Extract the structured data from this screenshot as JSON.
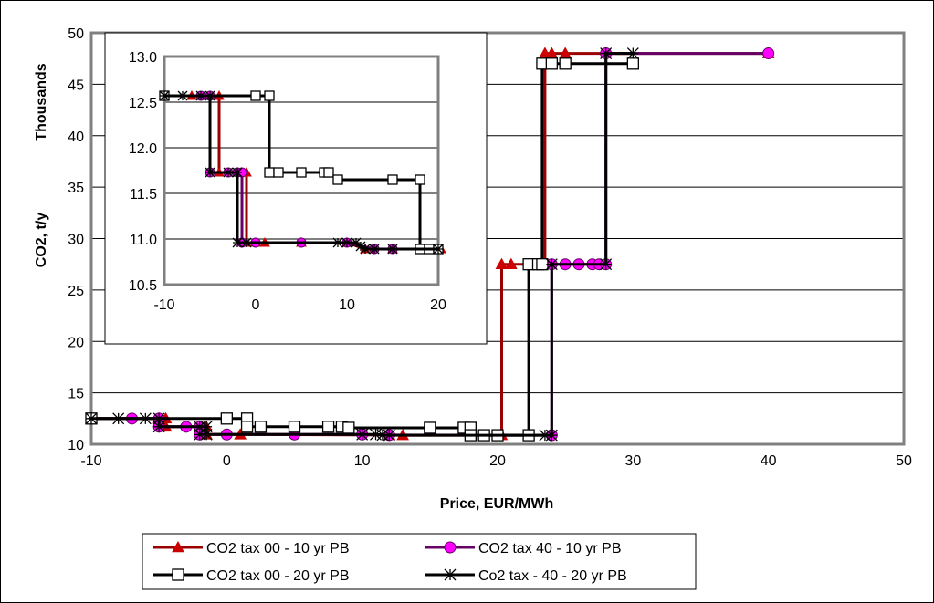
{
  "chart_data": [
    {
      "type": "line",
      "title": "",
      "xlabel": "Price, EUR/MWh",
      "ylabel": "CO2, t/y",
      "y_unit_label": "Thousands",
      "xlim": [
        -10,
        50
      ],
      "ylim": [
        10,
        50
      ],
      "x_ticks": [
        "-10",
        "0",
        "10",
        "20",
        "30",
        "40",
        "50"
      ],
      "y_ticks": [
        "10",
        "15",
        "20",
        "25",
        "30",
        "35",
        "40",
        "45",
        "50"
      ],
      "grid": "horizontal",
      "legend_position": "bottom",
      "series": [
        {
          "name": "CO2 tax 00 - 10 yr PB",
          "color": "#990000",
          "marker": "triangle",
          "marker_color": "#cc0000",
          "x": [
            -10,
            -5,
            -4.5,
            -4.5,
            -2,
            -1.5,
            -1.5,
            1,
            12,
            13,
            20.3,
            20.3,
            21,
            23.5,
            23.5,
            24,
            25,
            40
          ],
          "y": [
            12.5,
            12.5,
            12.5,
            11.7,
            11.7,
            11.7,
            10.95,
            10.95,
            10.9,
            10.88,
            10.88,
            27.5,
            27.5,
            27.5,
            48,
            48,
            48,
            48
          ]
        },
        {
          "name": "CO2 tax 40 - 10 yr PB",
          "color": "#660066",
          "marker": "circle",
          "marker_color": "#ff00ff",
          "x": [
            -10,
            -7,
            -5,
            -5,
            -3,
            -2,
            -2,
            0,
            5,
            10,
            12,
            24,
            24,
            25,
            26,
            27,
            27.5,
            28,
            28,
            40
          ],
          "y": [
            12.5,
            12.5,
            12.5,
            11.7,
            11.7,
            11.7,
            10.95,
            10.95,
            10.95,
            10.95,
            10.9,
            10.88,
            27.5,
            27.5,
            27.5,
            27.5,
            27.5,
            27.5,
            48,
            48
          ]
        },
        {
          "name": "CO2 tax 00 - 20 yr PB",
          "color": "#000000",
          "marker": "square",
          "marker_color": "#ffffff",
          "x": [
            -10,
            0,
            1.5,
            1.5,
            2.5,
            5,
            7.5,
            8.5,
            9,
            15,
            17.5,
            18,
            18,
            19,
            20,
            22.3,
            22.3,
            23,
            23.3,
            23.3,
            24,
            25,
            30
          ],
          "y": [
            12.5,
            12.5,
            12.5,
            11.7,
            11.7,
            11.7,
            11.7,
            11.7,
            11.6,
            11.6,
            11.6,
            11.6,
            10.88,
            10.88,
            10.88,
            10.88,
            27.5,
            27.5,
            27.5,
            47,
            47,
            47,
            47
          ]
        },
        {
          "name": "Co2 tax - 40 - 20 yr PB",
          "color": "#000000",
          "marker": "star",
          "marker_color": "#000000",
          "x": [
            -10,
            -8,
            -6,
            -5,
            -5,
            -2,
            -1.5,
            -1.5,
            -2,
            10,
            11,
            11.5,
            12,
            23.5,
            24,
            24,
            28,
            28,
            30
          ],
          "y": [
            12.5,
            12.5,
            12.5,
            12.5,
            11.7,
            11.7,
            11.7,
            10.95,
            10.95,
            10.95,
            10.95,
            10.9,
            10.88,
            10.88,
            10.88,
            27.5,
            27.5,
            48,
            48
          ]
        }
      ]
    },
    {
      "type": "line",
      "title": "",
      "xlim": [
        -10,
        20
      ],
      "ylim": [
        10.5,
        13.0
      ],
      "x_ticks": [
        "-10",
        "0",
        "10",
        "20"
      ],
      "y_ticks": [
        "10.5",
        "11.0",
        "11.5",
        "12.0",
        "12.5",
        "13.0"
      ],
      "grid": "horizontal",
      "series": [
        {
          "name": "CO2 tax 00 - 10 yr PB",
          "color": "#990000",
          "marker": "triangle",
          "marker_color": "#cc0000",
          "x": [
            -10,
            -7,
            -5,
            -4,
            -4,
            -2,
            -1,
            -1,
            0,
            1,
            5,
            10,
            12,
            15,
            20.3
          ],
          "y": [
            12.57,
            12.57,
            12.57,
            12.57,
            11.73,
            11.73,
            11.73,
            10.96,
            10.96,
            10.96,
            10.96,
            10.96,
            10.89,
            10.89,
            10.89
          ]
        },
        {
          "name": "CO2 tax 40 - 10 yr PB",
          "color": "#660066",
          "marker": "circle",
          "marker_color": "#ff00ff",
          "x": [
            -10,
            -6,
            -5,
            -5,
            -3,
            -2,
            -1.5,
            -1.5,
            0,
            5,
            10,
            13,
            15,
            20
          ],
          "y": [
            12.57,
            12.57,
            12.57,
            11.73,
            11.73,
            11.73,
            11.73,
            10.96,
            10.96,
            10.96,
            10.96,
            10.89,
            10.89,
            10.89
          ]
        },
        {
          "name": "CO2 tax 00 - 20 yr PB",
          "color": "#000000",
          "marker": "square",
          "marker_color": "#ffffff",
          "x": [
            -10,
            0,
            1.5,
            1.5,
            2.5,
            5,
            7.5,
            8,
            9,
            15,
            18,
            18,
            19,
            20
          ],
          "y": [
            12.57,
            12.57,
            12.57,
            11.73,
            11.73,
            11.73,
            11.73,
            11.73,
            11.65,
            11.65,
            11.65,
            10.89,
            10.89,
            10.89
          ]
        },
        {
          "name": "Co2 tax - 40 - 20 yr PB",
          "color": "#000000",
          "marker": "star",
          "marker_color": "#000000",
          "x": [
            -10,
            -8,
            -6,
            -5,
            -5,
            -3,
            -2,
            -2,
            -1,
            9,
            10,
            11,
            11.5,
            12,
            13,
            15,
            20
          ],
          "y": [
            12.57,
            12.57,
            12.57,
            12.57,
            11.73,
            11.73,
            11.73,
            10.96,
            10.96,
            10.96,
            10.96,
            10.96,
            10.92,
            10.89,
            10.89,
            10.89,
            10.89
          ]
        }
      ]
    }
  ]
}
